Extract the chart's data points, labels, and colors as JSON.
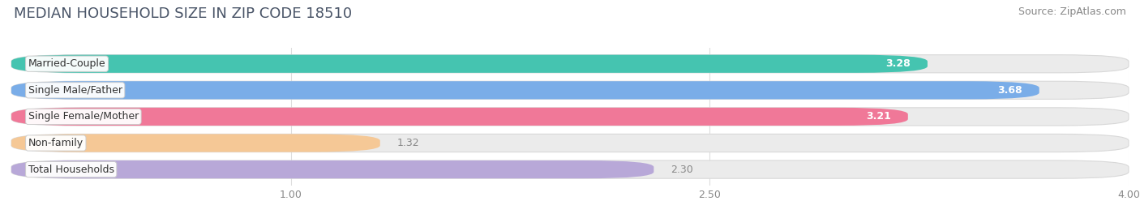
{
  "title": "MEDIAN HOUSEHOLD SIZE IN ZIP CODE 18510",
  "source": "Source: ZipAtlas.com",
  "categories": [
    "Married-Couple",
    "Single Male/Father",
    "Single Female/Mother",
    "Non-family",
    "Total Households"
  ],
  "values": [
    3.28,
    3.68,
    3.21,
    1.32,
    2.3
  ],
  "bar_colors": [
    "#45c4b0",
    "#7aade8",
    "#f07898",
    "#f5c896",
    "#b8a8d8"
  ],
  "bar_bg_colors": [
    "#ebebeb",
    "#ebebeb",
    "#ebebeb",
    "#ebebeb",
    "#ebebeb"
  ],
  "value_label_inside": [
    true,
    true,
    true,
    false,
    false
  ],
  "xlim": [
    0,
    4.0
  ],
  "xticks": [
    1.0,
    2.5,
    4.0
  ],
  "title_fontsize": 13,
  "source_fontsize": 9,
  "bar_label_fontsize": 9,
  "value_fontsize": 9,
  "background_color": "#ffffff"
}
